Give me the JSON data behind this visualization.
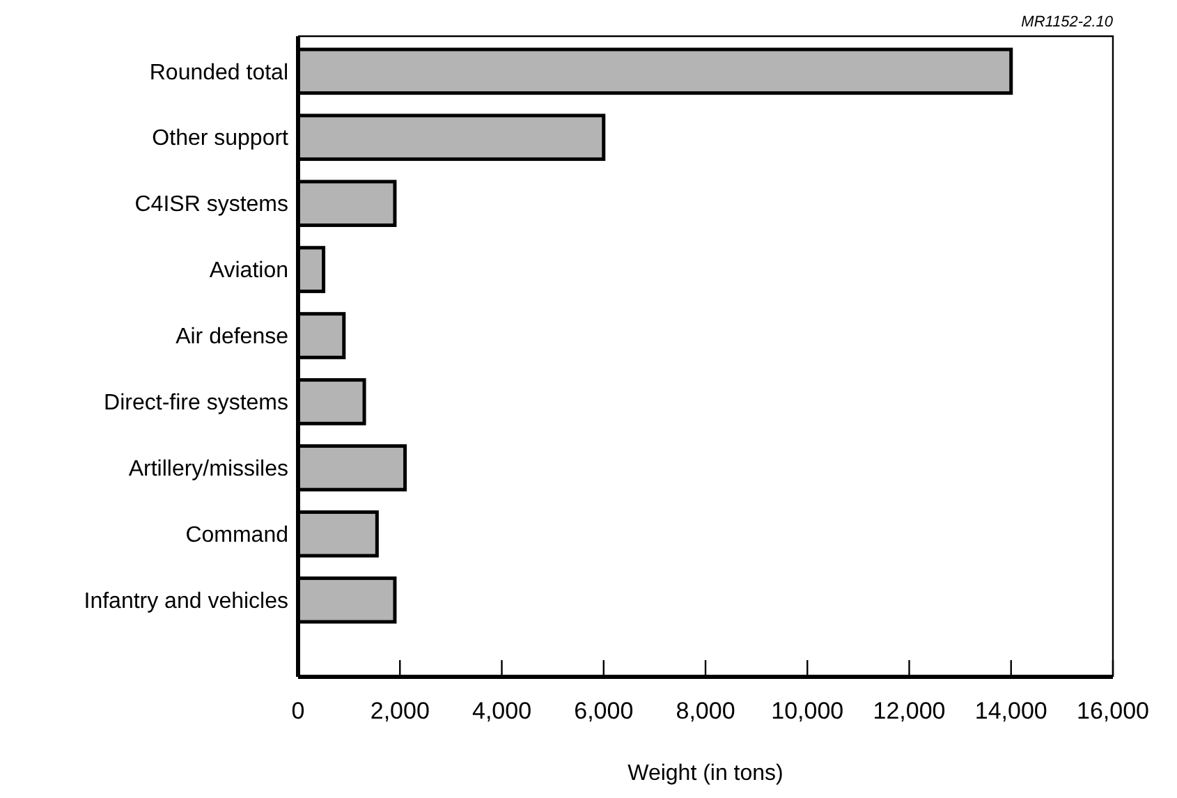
{
  "chart_data": {
    "type": "bar",
    "orientation": "horizontal",
    "categories": [
      "Rounded total",
      "Other support",
      "C4ISR systems",
      "Aviation",
      "Air defense",
      "Direct-fire systems",
      "Artillery/missiles",
      "Command",
      "Infantry and vehicles"
    ],
    "values": [
      14000,
      6000,
      1900,
      500,
      900,
      1300,
      2100,
      1550,
      1900
    ],
    "color": "#b4b4b4",
    "xlabel": "Weight (in tons)",
    "xlim": [
      0,
      16000
    ],
    "xticks": [
      0,
      {
        "value": 2000,
        "label": "2,000"
      },
      {
        "value": 4000,
        "label": "4,000"
      },
      {
        "value": 6000,
        "label": "6,000"
      },
      {
        "value": 8000,
        "label": "8,000"
      },
      {
        "value": 10000,
        "label": "10,000"
      },
      {
        "value": 12000,
        "label": "12,000"
      },
      {
        "value": 14000,
        "label": "14,000"
      },
      {
        "value": 16000,
        "label": "16,000"
      }
    ],
    "grid": false,
    "annotations": [
      "MR1152-2.10"
    ]
  }
}
